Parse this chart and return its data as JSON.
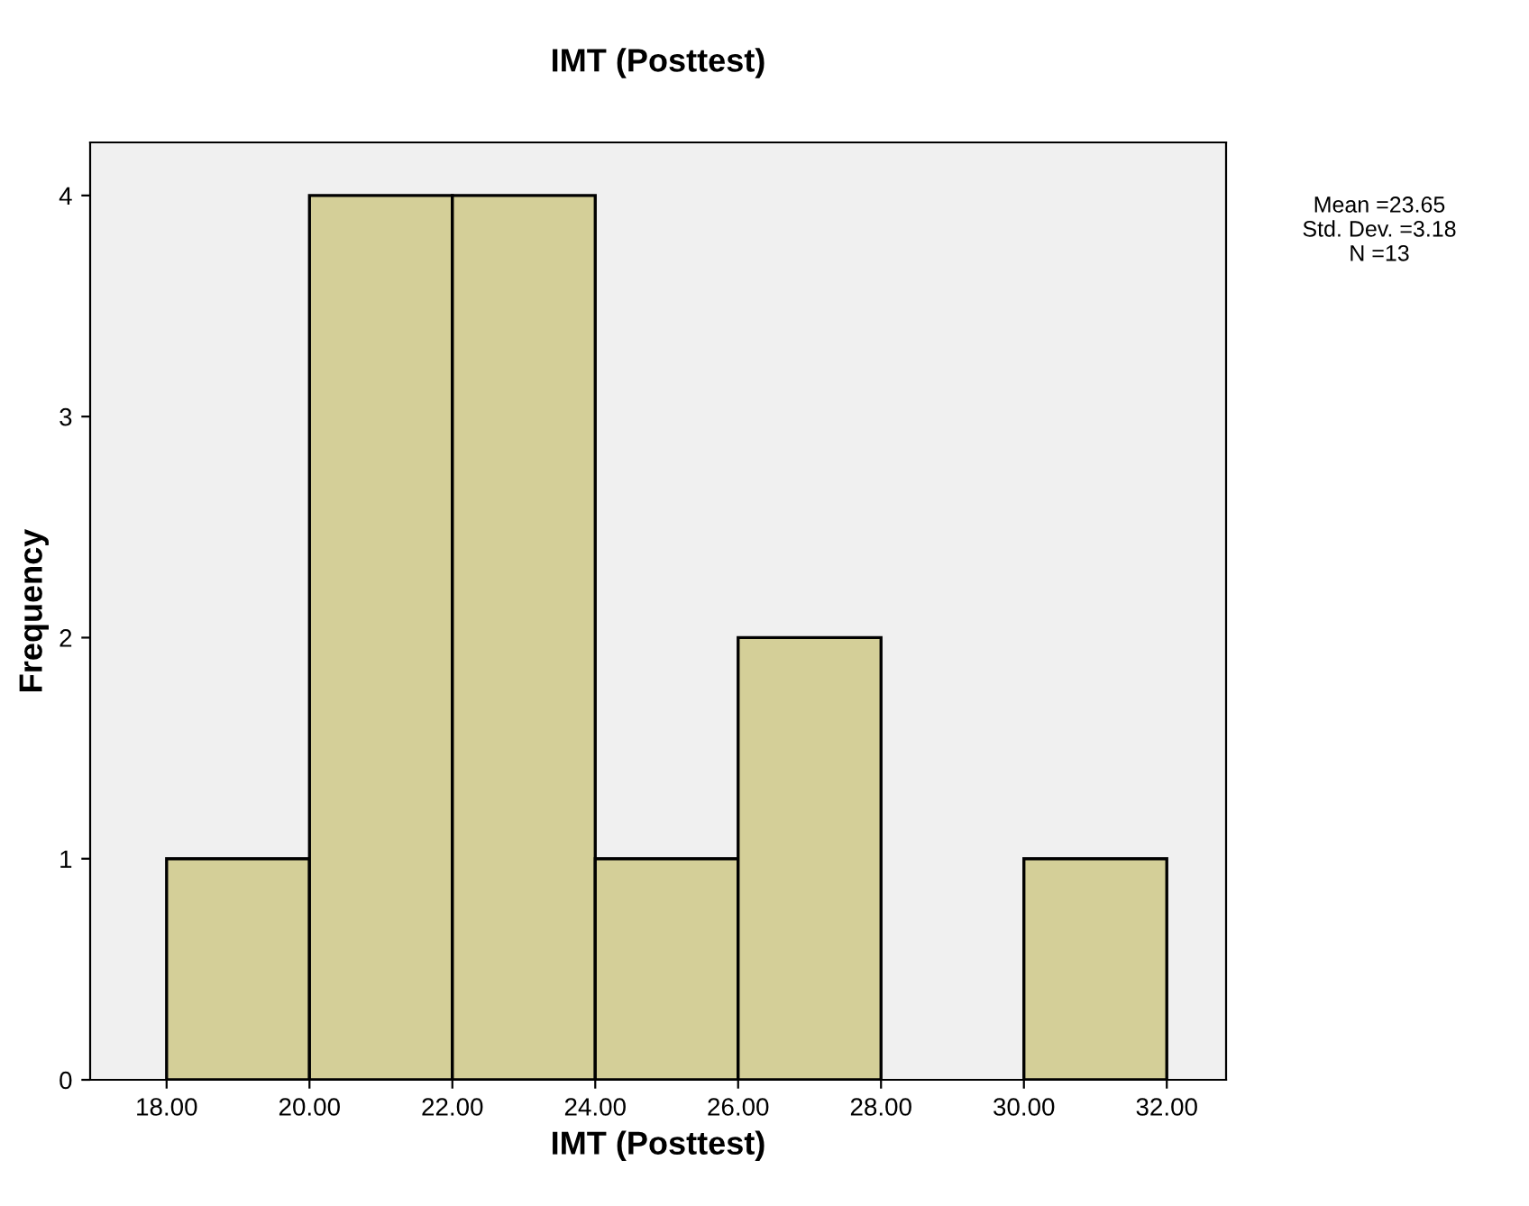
{
  "chart_data": {
    "type": "histogram",
    "title": "IMT (Posttest)",
    "xlabel": "IMT (Posttest)",
    "ylabel": "Frequency",
    "bins": [
      18,
      20,
      22,
      24,
      26,
      28,
      30,
      32
    ],
    "values": [
      1,
      4,
      4,
      1,
      2,
      0,
      1
    ],
    "color": "#d4cf98",
    "xlim": [
      16.93,
      32.83
    ],
    "ylim": [
      0,
      4.24
    ],
    "xticks": [
      {
        "value": 18,
        "label": "18.00"
      },
      {
        "value": 20,
        "label": "20.00"
      },
      {
        "value": 22,
        "label": "22.00"
      },
      {
        "value": 24,
        "label": "24.00"
      },
      {
        "value": 26,
        "label": "26.00"
      },
      {
        "value": 28,
        "label": "28.00"
      },
      {
        "value": 30,
        "label": "30.00"
      },
      {
        "value": 32,
        "label": "32.00"
      }
    ],
    "yticks": [
      0,
      1,
      2,
      3,
      4
    ],
    "grid": false,
    "annotations": [
      "Mean =23.65\nStd. Dev. =3.18\nN =13"
    ]
  }
}
